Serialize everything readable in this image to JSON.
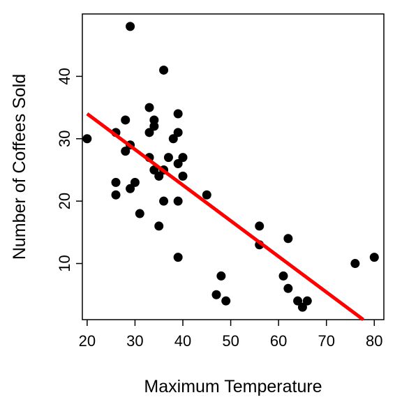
{
  "chart_data": {
    "type": "scatter",
    "title": "",
    "xlabel": "Maximum Temperature",
    "ylabel": "Number of Coffees Sold",
    "xlim": [
      19,
      82
    ],
    "ylim": [
      1,
      50
    ],
    "xticks": [
      20,
      30,
      40,
      50,
      60,
      70,
      80
    ],
    "yticks": [
      10,
      20,
      30,
      40
    ],
    "grid": false,
    "legend": "none",
    "point_color": "#000000",
    "line_color": "#ff0000",
    "points": [
      {
        "x": 20,
        "y": 30
      },
      {
        "x": 26,
        "y": 31
      },
      {
        "x": 26,
        "y": 23
      },
      {
        "x": 26,
        "y": 21
      },
      {
        "x": 28,
        "y": 33
      },
      {
        "x": 28,
        "y": 28
      },
      {
        "x": 29,
        "y": 29
      },
      {
        "x": 29,
        "y": 22
      },
      {
        "x": 29,
        "y": 48
      },
      {
        "x": 30,
        "y": 23
      },
      {
        "x": 31,
        "y": 18
      },
      {
        "x": 33,
        "y": 35
      },
      {
        "x": 33,
        "y": 31
      },
      {
        "x": 33,
        "y": 27
      },
      {
        "x": 34,
        "y": 33
      },
      {
        "x": 34,
        "y": 32
      },
      {
        "x": 34,
        "y": 25
      },
      {
        "x": 35,
        "y": 24
      },
      {
        "x": 35,
        "y": 16
      },
      {
        "x": 36,
        "y": 41
      },
      {
        "x": 36,
        "y": 25
      },
      {
        "x": 36,
        "y": 20
      },
      {
        "x": 37,
        "y": 27
      },
      {
        "x": 38,
        "y": 30
      },
      {
        "x": 39,
        "y": 34
      },
      {
        "x": 39,
        "y": 31
      },
      {
        "x": 39,
        "y": 26
      },
      {
        "x": 39,
        "y": 20
      },
      {
        "x": 39,
        "y": 11
      },
      {
        "x": 40,
        "y": 27
      },
      {
        "x": 40,
        "y": 24
      },
      {
        "x": 45,
        "y": 21
      },
      {
        "x": 47,
        "y": 5
      },
      {
        "x": 48,
        "y": 8
      },
      {
        "x": 49,
        "y": 4
      },
      {
        "x": 56,
        "y": 16
      },
      {
        "x": 56,
        "y": 13
      },
      {
        "x": 61,
        "y": 8
      },
      {
        "x": 62,
        "y": 14
      },
      {
        "x": 62,
        "y": 6
      },
      {
        "x": 64,
        "y": 4
      },
      {
        "x": 65,
        "y": 3
      },
      {
        "x": 66,
        "y": 4
      },
      {
        "x": 76,
        "y": 10
      },
      {
        "x": 80,
        "y": 11
      }
    ],
    "fit_line": {
      "x": [
        20,
        77.7
      ],
      "y": [
        34,
        1
      ]
    }
  }
}
